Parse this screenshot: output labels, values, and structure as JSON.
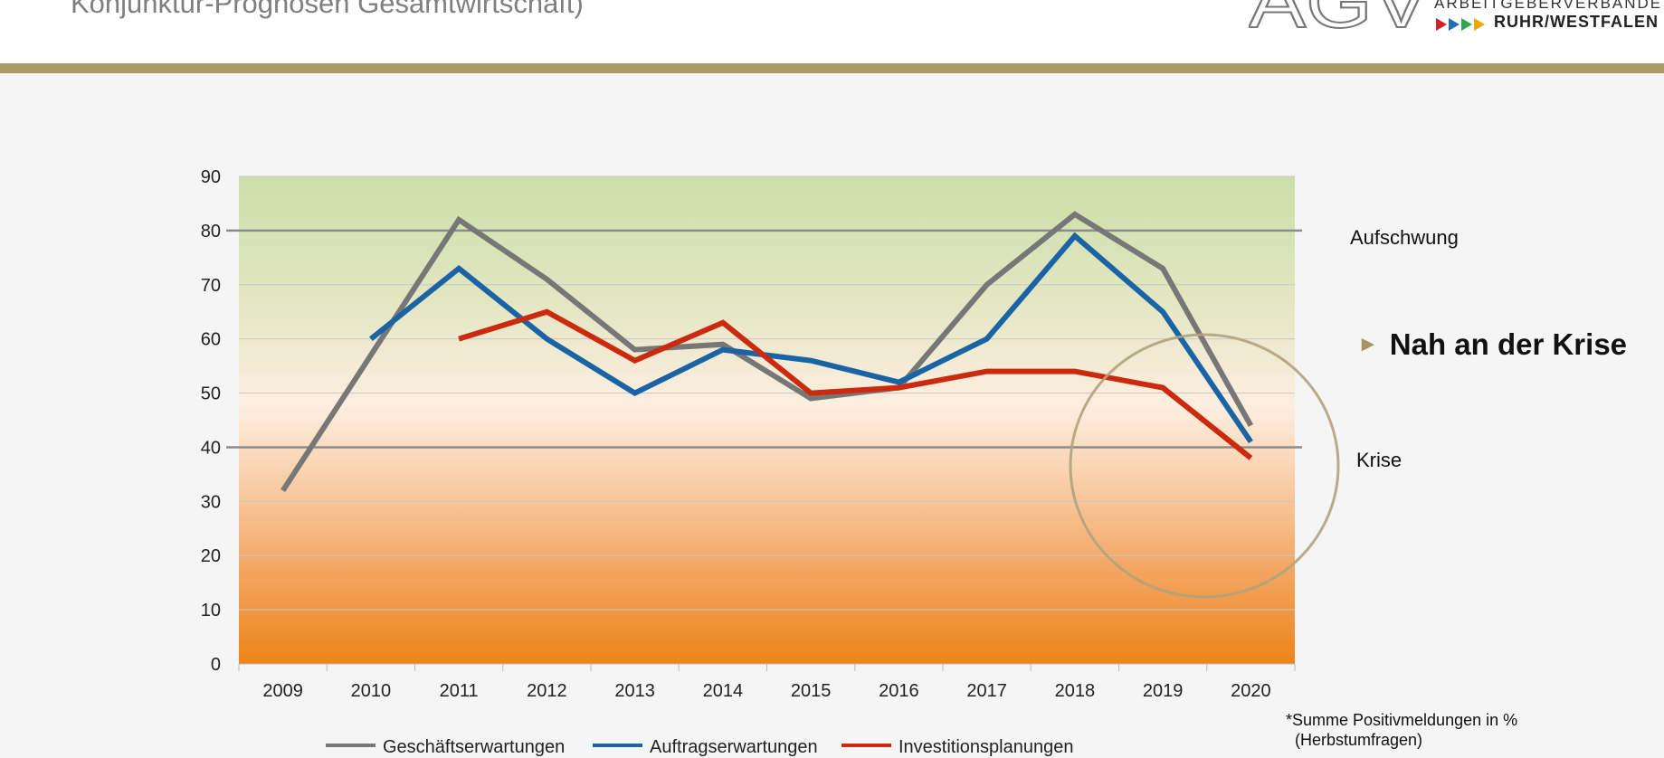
{
  "header": {
    "title": "Konjunktur-Prognosen Gesamtwirtschaft)",
    "logo_letters": "AGV",
    "logo_line1": "ARBEITGEBERVERBÄNDE",
    "logo_line2": "RUHR/WESTFALEN",
    "logo_arrow_colors": [
      "#d61f26",
      "#1f6fb5",
      "#2fa84f",
      "#f0a500"
    ]
  },
  "annotations": {
    "upper_threshold_label": "Aufschwung",
    "lower_threshold_label": "Krise",
    "highlight_text": "Nah an der Krise",
    "footnote_line1": "*Summe Positivmeldungen in %",
    "footnote_line2": "(Herbstumfragen)"
  },
  "chart_data": {
    "type": "line",
    "title": "",
    "xlabel": "",
    "ylabel": "",
    "ylim": [
      0,
      90
    ],
    "yticks": [
      0,
      10,
      20,
      30,
      40,
      50,
      60,
      70,
      80,
      90
    ],
    "categories": [
      "2009",
      "2010",
      "2011",
      "2012",
      "2013",
      "2014",
      "2015",
      "2016",
      "2017",
      "2018",
      "2019",
      "2020"
    ],
    "threshold_lines": [
      80,
      40
    ],
    "series": [
      {
        "name": "Geschäftserwartungen",
        "color": "#777777",
        "values": [
          32,
          57,
          82,
          71,
          58,
          59,
          49,
          51,
          70,
          83,
          73,
          44
        ]
      },
      {
        "name": "Auftragserwartungen",
        "color": "#1a64a6",
        "values": [
          null,
          60,
          73,
          60,
          50,
          58,
          56,
          52,
          60,
          79,
          65,
          41
        ]
      },
      {
        "name": "Investitionsplanungen",
        "color": "#cc2a0e",
        "values": [
          null,
          null,
          60,
          65,
          56,
          63,
          50,
          51,
          54,
          54,
          51,
          38
        ]
      }
    ],
    "legend_position": "bottom",
    "grid": true
  }
}
